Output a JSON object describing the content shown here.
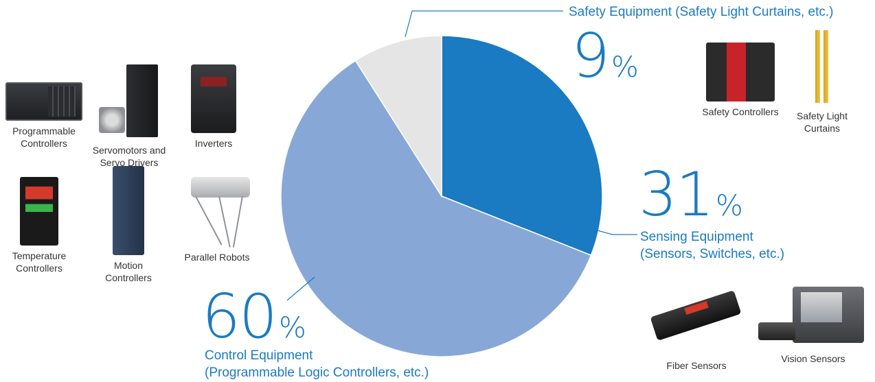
{
  "chart_data": {
    "type": "pie",
    "title": "",
    "start_angle": "12 o'clock",
    "direction": "clockwise",
    "slices": [
      {
        "key": "sensing",
        "label": "Sensing Equipment\n(Sensors, Switches, etc.)",
        "value": 31,
        "percent_text": "31",
        "color": "#1a7ac2"
      },
      {
        "key": "control",
        "label": "Control Equipment\n(Programmable Logic Controllers, etc.)",
        "value": 60,
        "percent_text": "60",
        "color": "#87a8d6"
      },
      {
        "key": "safety",
        "label": "Safety Equipment (Safety Light Curtains, etc.)",
        "value": 9,
        "percent_text": "9",
        "color": "#e4e5e4"
      }
    ],
    "percent_sign": "%",
    "leader_line_color": "#1a7ac2"
  },
  "labels": {
    "safety": "Safety Equipment (Safety Light Curtains, etc.)",
    "sensing_line1": "Sensing Equipment",
    "sensing_line2": "(Sensors, Switches, etc.)",
    "control_line1": "Control Equipment",
    "control_line2": "(Programmable Logic Controllers, etc.)"
  },
  "products": {
    "programmable_controllers": "Programmable\nControllers",
    "servomotors": "Servomotors and\nServo Drivers",
    "inverters": "Inverters",
    "temperature_controllers": "Temperature\nControllers",
    "motion_controllers": "Motion\nControllers",
    "parallel_robots": "Parallel Robots",
    "safety_controllers": "Safety Controllers",
    "safety_light_curtains": "Safety Light\nCurtains",
    "fiber_sensors": "Fiber Sensors",
    "vision_sensors": "Vision Sensors"
  }
}
